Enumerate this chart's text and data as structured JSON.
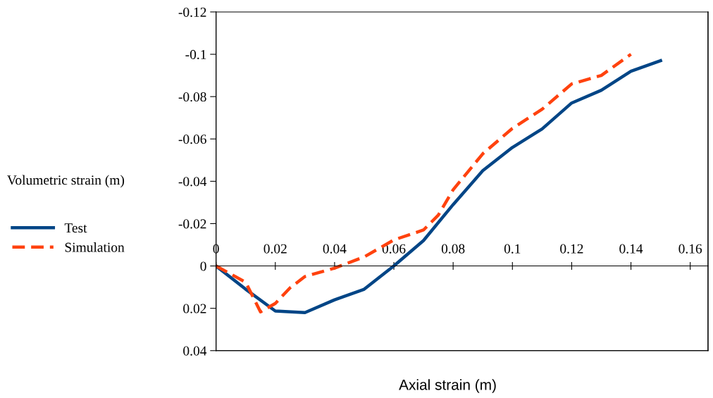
{
  "chart_data": {
    "type": "line",
    "xlabel": "Axial strain (m)",
    "ylabel": "Volumetric strain (m)",
    "xlim": [
      0,
      0.166
    ],
    "xticks": [
      0,
      0.02,
      0.04,
      0.06,
      0.08,
      0.1,
      0.12,
      0.14,
      0.16
    ],
    "ylim": [
      0.04,
      -0.12
    ],
    "yticks": [
      -0.12,
      -0.1,
      -0.08,
      -0.06,
      -0.04,
      -0.02,
      0,
      0.02,
      0.04
    ],
    "grid": false,
    "legend": "left",
    "marker": "none",
    "series": [
      {
        "name": "Test",
        "color": "#004586",
        "line_style": "solid",
        "x": [
          0,
          0.01,
          0.02,
          0.03,
          0.04,
          0.05,
          0.06,
          0.07,
          0.08,
          0.09,
          0.1,
          0.11,
          0.12,
          0.13,
          0.14,
          0.15
        ],
        "values": [
          0,
          0.011,
          0.0213,
          0.022,
          0.016,
          0.011,
          0,
          -0.012,
          -0.029,
          -0.045,
          -0.056,
          -0.0647,
          -0.077,
          -0.083,
          -0.092,
          -0.097
        ]
      },
      {
        "name": "Simulation",
        "color": "#ff420e",
        "line_style": "dashed",
        "x": [
          0,
          0.01,
          0.015,
          0.02,
          0.025,
          0.03,
          0.04,
          0.05,
          0.06,
          0.07,
          0.075,
          0.08,
          0.09,
          0.1,
          0.11,
          0.12,
          0.13,
          0.14
        ],
        "values": [
          0,
          0.0077,
          0.0217,
          0.0177,
          0.0103,
          0.005,
          0.001,
          -0.0043,
          -0.0123,
          -0.017,
          -0.024,
          -0.036,
          -0.053,
          -0.065,
          -0.074,
          -0.086,
          -0.09,
          -0.1
        ]
      }
    ]
  }
}
